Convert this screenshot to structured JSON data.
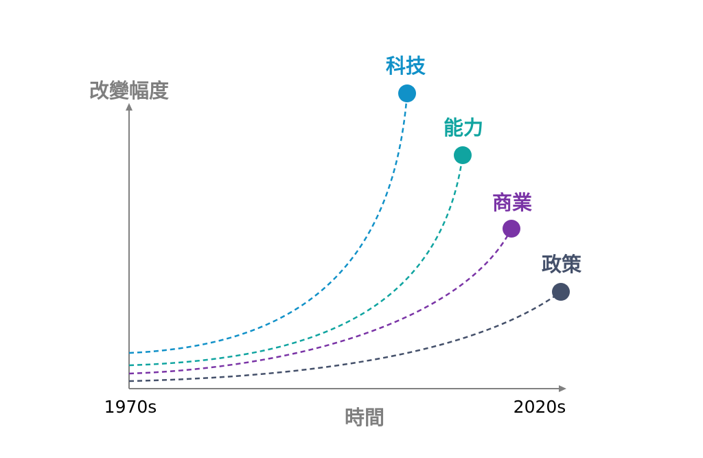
{
  "y_axis_label": "改變幅度",
  "x_axis_label": "時間",
  "x_start_label": "1970s",
  "x_end_label": "2020s",
  "colors": {
    "axis": "#808080",
    "axis_text": "#7f7f7f",
    "tick_text": "#000000"
  },
  "curves": [
    {
      "label": "科技",
      "color": "#1191c8"
    },
    {
      "label": "能力",
      "color": "#10a4a0"
    },
    {
      "label": "商業",
      "color": "#7a34a6"
    },
    {
      "label": "政策",
      "color": "#44506a"
    }
  ]
}
